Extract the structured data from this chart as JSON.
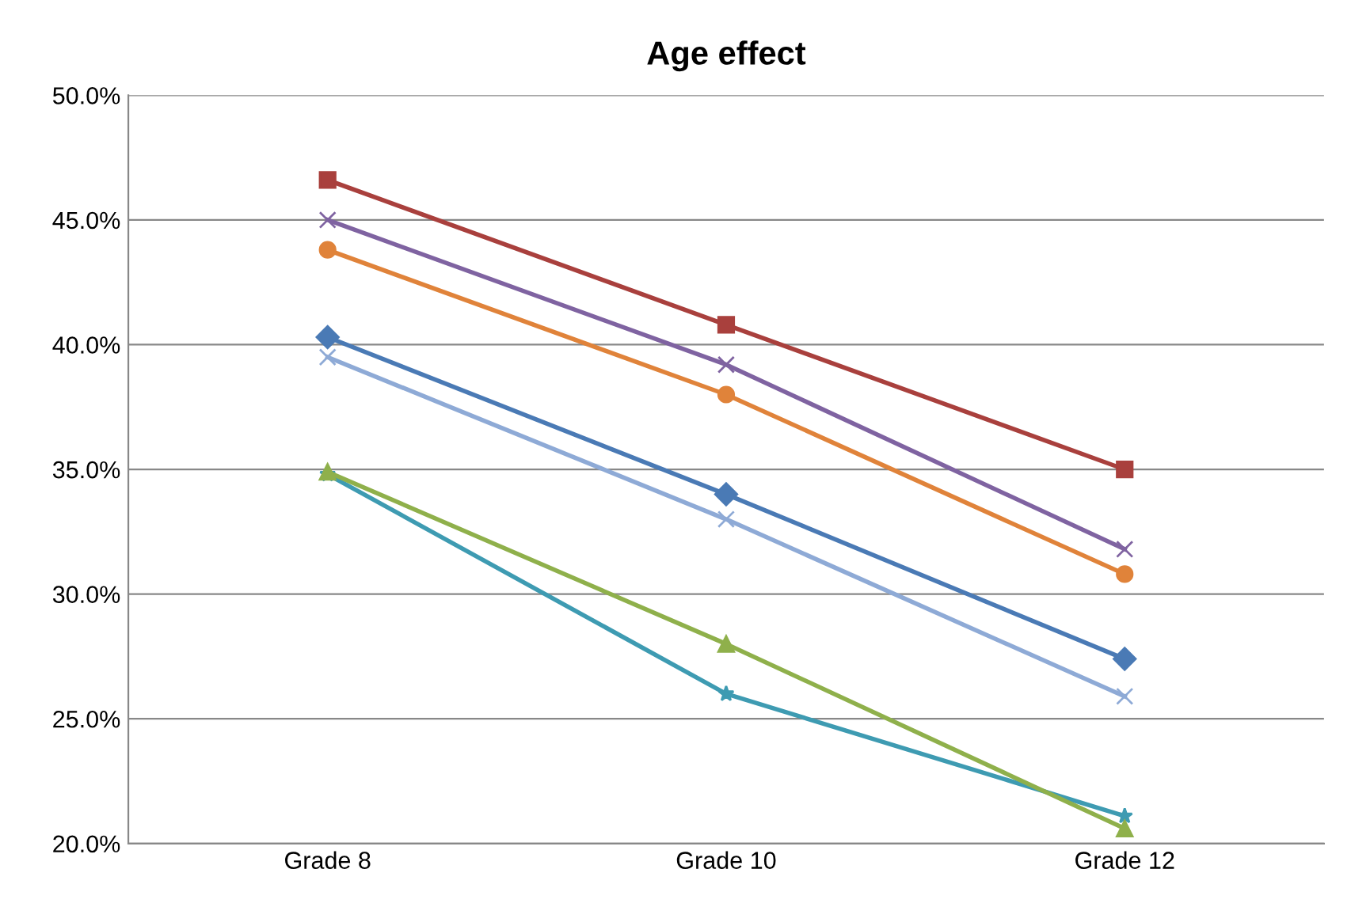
{
  "chart_data": {
    "type": "line",
    "title": "Age effect",
    "categories": [
      "Grade 8",
      "Grade 10",
      "Grade 12"
    ],
    "ylim": [
      20,
      50
    ],
    "yticks": [
      {
        "value": 20,
        "label": "20.0%"
      },
      {
        "value": 25,
        "label": "25.0%"
      },
      {
        "value": 30,
        "label": "30.0%"
      },
      {
        "value": 35,
        "label": "35.0%"
      },
      {
        "value": 40,
        "label": "40.0%"
      },
      {
        "value": 45,
        "label": "45.0%"
      },
      {
        "value": 50,
        "label": "50.0%"
      }
    ],
    "grid": "y",
    "legend": false,
    "line_style": "solid",
    "series": [
      {
        "color": "#a9403d",
        "marker": "square",
        "values": [
          46.6,
          40.8,
          35.0
        ]
      },
      {
        "color": "#7f63a1",
        "marker": "cross",
        "values": [
          45.0,
          39.2,
          31.8
        ]
      },
      {
        "color": "#e0833a",
        "marker": "circle",
        "values": [
          43.8,
          38.0,
          30.8
        ]
      },
      {
        "color": "#4a7ab5",
        "marker": "diamond",
        "values": [
          40.3,
          34.0,
          27.4
        ]
      },
      {
        "color": "#8eaad6",
        "marker": "cross",
        "values": [
          39.5,
          33.0,
          25.9
        ]
      },
      {
        "color": "#8fb04b",
        "marker": "triangle",
        "values": [
          34.9,
          28.0,
          20.6
        ]
      },
      {
        "color": "#3e9bb2",
        "marker": "star",
        "values": [
          34.8,
          26.0,
          21.1
        ]
      }
    ]
  }
}
